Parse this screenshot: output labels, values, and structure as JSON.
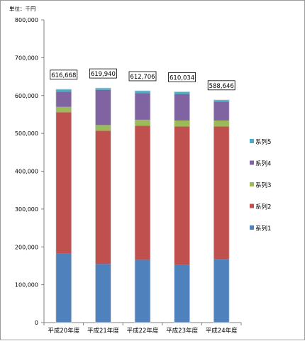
{
  "chart_data": {
    "type": "bar",
    "stacked": true,
    "unit_label": "単位：千円",
    "categories": [
      "平成20年度",
      "平成21年度",
      "平成22年度",
      "平成23年度",
      "平成24年度"
    ],
    "series": [
      {
        "name": "系列1",
        "color": "#4f81bd",
        "values": [
          182000,
          155000,
          166000,
          152000,
          168000
        ]
      },
      {
        "name": "系列2",
        "color": "#c0504d",
        "values": [
          374000,
          352000,
          354000,
          366000,
          350000
        ]
      },
      {
        "name": "系列3",
        "color": "#9bbb59",
        "values": [
          14000,
          15000,
          16000,
          16000,
          16000
        ]
      },
      {
        "name": "系列4",
        "color": "#8064a2",
        "values": [
          40000,
          93000,
          70000,
          70000,
          50000
        ]
      },
      {
        "name": "系列5",
        "color": "#4bacc6",
        "values": [
          6668,
          4940,
          6706,
          6034,
          4646
        ]
      }
    ],
    "totals": [
      "616,668",
      "619,940",
      "612,706",
      "610,034",
      "588,646"
    ],
    "ylim": [
      0,
      800000
    ],
    "yticks": [
      "0",
      "100,000",
      "200,000",
      "300,000",
      "400,000",
      "500,000",
      "600,000",
      "700,000",
      "800,000"
    ],
    "grid": false,
    "legend_position": "right"
  }
}
